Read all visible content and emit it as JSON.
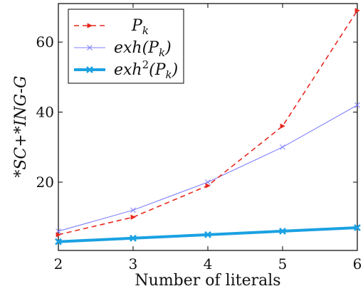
{
  "chart_data": {
    "type": "line",
    "x": [
      2,
      3,
      4,
      5,
      6
    ],
    "xlim": [
      2,
      6
    ],
    "ylim": [
      0.5,
      71
    ],
    "x_ticks": [
      2,
      3,
      4,
      5,
      6
    ],
    "y_ticks": [
      20,
      40,
      60
    ],
    "xlabel": "Number of literals",
    "ylabel": "*SC+*ING-G",
    "legend_position": "top-left",
    "grid": false,
    "series": [
      {
        "name": "P_k",
        "label_base": "P",
        "label_sub": "k",
        "values": [
          5,
          10,
          19,
          36,
          69
        ],
        "color": "#e8281e",
        "dash": "7,5",
        "marker": "tri",
        "width": 1.6
      },
      {
        "name": "exh(P_k)",
        "label_base": "exh(P",
        "label_sub": "k",
        "label_end": ")",
        "values": [
          6,
          12,
          20,
          30,
          42
        ],
        "color": "#8080ff",
        "dash": "",
        "marker": "x",
        "width": 1.1
      },
      {
        "name": "exh^2(P_k)",
        "label_base": "exh",
        "label_sup": "2",
        "label_mid": "(P",
        "label_sub": "k",
        "label_end": ")",
        "values": [
          3,
          4,
          5,
          6,
          7
        ],
        "color": "#1ba1e2",
        "dash": "",
        "marker": "xbold",
        "width": 4
      }
    ]
  }
}
